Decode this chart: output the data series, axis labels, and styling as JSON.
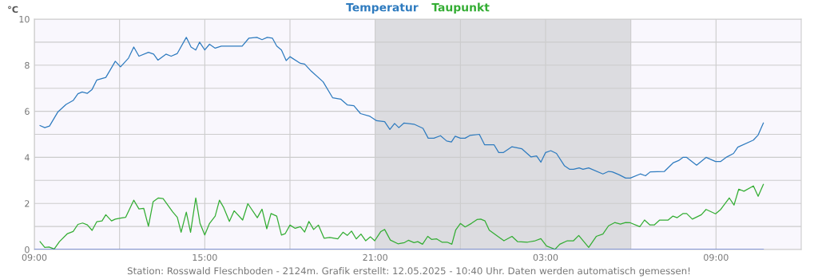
{
  "chart_data": {
    "type": "line",
    "ylabel": "°C",
    "annotations": [
      "Station: Rosswald Fleschboden - 2124m. Grafik erstellt: 12.05.2025 - 10:40 Uhr. Daten werden automatisch gemessen!"
    ],
    "xlim": [
      "2025-05-11T09:00",
      "2025-05-12T12:00"
    ],
    "xticks": [
      {
        "value": "2025-05-11T09:00",
        "label": "09:00"
      },
      {
        "value": "2025-05-11T12:00",
        "label": null
      },
      {
        "value": "2025-05-11T15:00",
        "label": "15:00"
      },
      {
        "value": "2025-05-11T18:00",
        "label": null
      },
      {
        "value": "2025-05-11T21:00",
        "label": "21:00"
      },
      {
        "value": "2025-05-12T00:00",
        "label": null
      },
      {
        "value": "2025-05-12T03:00",
        "label": "03:00"
      },
      {
        "value": "2025-05-12T06:00",
        "label": null
      },
      {
        "value": "2025-05-12T09:00",
        "label": "09:00"
      }
    ],
    "ylim": [
      0,
      10
    ],
    "yticks": [
      0,
      {
        "value": 1,
        "label": null
      },
      2,
      {
        "value": 3,
        "label": null
      },
      4,
      {
        "value": 5,
        "label": null
      },
      6,
      {
        "value": 7,
        "label": null
      },
      8,
      {
        "value": 9,
        "label": null
      },
      10
    ],
    "grid": true,
    "legend": "top",
    "marker": "none",
    "line_style": "solid",
    "bands": [
      {
        "axis": "x",
        "from": "2025-05-11T21:00",
        "to": "2025-05-12T06:00",
        "color": "#dcdce0"
      }
    ],
    "series": [
      {
        "name": "Temperatur",
        "color": "#2e7bbf",
        "x": [
          "2025-05-11T09:12",
          "2025-05-11T09:22",
          "2025-05-11T09:32",
          "2025-05-11T09:50",
          "2025-05-11T10:07",
          "2025-05-11T10:22",
          "2025-05-11T10:32",
          "2025-05-11T10:41",
          "2025-05-11T10:52",
          "2025-05-11T11:02",
          "2025-05-11T11:12",
          "2025-05-11T11:31",
          "2025-05-11T11:51",
          "2025-05-11T12:02",
          "2025-05-11T12:19",
          "2025-05-11T12:30",
          "2025-05-11T12:41",
          "2025-05-11T13:01",
          "2025-05-11T13:12",
          "2025-05-11T13:21",
          "2025-05-11T13:38",
          "2025-05-11T13:49",
          "2025-05-11T14:02",
          "2025-05-11T14:21",
          "2025-05-11T14:31",
          "2025-05-11T14:41",
          "2025-05-11T14:49",
          "2025-05-11T15:00",
          "2025-05-11T15:10",
          "2025-05-11T15:22",
          "2025-05-11T15:35",
          "2025-05-11T15:40",
          "2025-05-11T16:19",
          "2025-05-11T16:33",
          "2025-05-11T16:50",
          "2025-05-11T17:01",
          "2025-05-11T17:12",
          "2025-05-11T17:23",
          "2025-05-11T17:32",
          "2025-05-11T17:42",
          "2025-05-11T17:52",
          "2025-05-11T18:00",
          "2025-05-11T18:22",
          "2025-05-11T18:31",
          "2025-05-11T18:45",
          "2025-05-11T19:10",
          "2025-05-11T19:30",
          "2025-05-11T19:47",
          "2025-05-11T20:01",
          "2025-05-11T20:15",
          "2025-05-11T20:29",
          "2025-05-11T20:49",
          "2025-05-11T21:03",
          "2025-05-11T21:20",
          "2025-05-11T21:31",
          "2025-05-11T21:41",
          "2025-05-11T21:50",
          "2025-05-11T22:01",
          "2025-05-11T22:22",
          "2025-05-11T22:41",
          "2025-05-11T22:52",
          "2025-05-11T23:04",
          "2025-05-11T23:18",
          "2025-05-11T23:31",
          "2025-05-11T23:41",
          "2025-05-11T23:49",
          "2025-05-12T00:00",
          "2025-05-12T00:10",
          "2025-05-12T00:20",
          "2025-05-12T00:40",
          "2025-05-12T00:51",
          "2025-05-12T01:11",
          "2025-05-12T01:21",
          "2025-05-12T01:31",
          "2025-05-12T01:49",
          "2025-05-12T02:10",
          "2025-05-12T02:29",
          "2025-05-12T02:41",
          "2025-05-12T02:50",
          "2025-05-12T03:00",
          "2025-05-12T03:11",
          "2025-05-12T03:23",
          "2025-05-12T03:40",
          "2025-05-12T03:51",
          "2025-05-12T03:59",
          "2025-05-12T04:11",
          "2025-05-12T04:19",
          "2025-05-12T04:31",
          "2025-05-12T05:01",
          "2025-05-12T05:13",
          "2025-05-12T05:21",
          "2025-05-12T05:35",
          "2025-05-12T05:49",
          "2025-05-12T05:59",
          "2025-05-12T06:20",
          "2025-05-12T06:31",
          "2025-05-12T06:41",
          "2025-05-12T07:11",
          "2025-05-12T07:30",
          "2025-05-12T07:41",
          "2025-05-12T07:50",
          "2025-05-12T07:58",
          "2025-05-12T08:19",
          "2025-05-12T08:39",
          "2025-05-12T08:59",
          "2025-05-12T09:10",
          "2025-05-12T09:23",
          "2025-05-12T09:37",
          "2025-05-12T09:46",
          "2025-05-12T10:19",
          "2025-05-12T10:29",
          "2025-05-12T10:40"
        ],
        "values": [
          5.38,
          5.29,
          5.36,
          5.98,
          6.3,
          6.47,
          6.76,
          6.84,
          6.78,
          6.95,
          7.36,
          7.47,
          8.17,
          7.93,
          8.31,
          8.79,
          8.39,
          8.56,
          8.48,
          8.22,
          8.48,
          8.39,
          8.51,
          9.21,
          8.79,
          8.66,
          9.0,
          8.66,
          8.91,
          8.74,
          8.83,
          8.83,
          8.83,
          9.17,
          9.21,
          9.11,
          9.21,
          9.17,
          8.83,
          8.66,
          8.2,
          8.37,
          8.08,
          8.05,
          7.74,
          7.28,
          6.59,
          6.53,
          6.28,
          6.24,
          5.9,
          5.78,
          5.59,
          5.55,
          5.21,
          5.47,
          5.29,
          5.49,
          5.44,
          5.26,
          4.83,
          4.83,
          4.94,
          4.71,
          4.67,
          4.92,
          4.83,
          4.83,
          4.95,
          5.0,
          4.55,
          4.55,
          4.21,
          4.21,
          4.46,
          4.37,
          4.02,
          4.06,
          3.79,
          4.21,
          4.29,
          4.17,
          3.63,
          3.48,
          3.48,
          3.54,
          3.48,
          3.54,
          3.28,
          3.39,
          3.37,
          3.25,
          3.1,
          3.1,
          3.28,
          3.2,
          3.37,
          3.39,
          3.77,
          3.86,
          4.0,
          4.0,
          3.66,
          4.0,
          3.82,
          3.82,
          4.02,
          4.17,
          4.44,
          4.75,
          4.97,
          5.49
        ]
      },
      {
        "name": "Taupunkt",
        "color": "#33ad33",
        "x": [
          "2025-05-11T09:12",
          "2025-05-11T09:22",
          "2025-05-11T09:31",
          "2025-05-11T09:42",
          "2025-05-11T09:53",
          "2025-05-11T10:10",
          "2025-05-11T10:22",
          "2025-05-11T10:32",
          "2025-05-11T10:42",
          "2025-05-11T10:52",
          "2025-05-11T11:02",
          "2025-05-11T11:12",
          "2025-05-11T11:23",
          "2025-05-11T11:31",
          "2025-05-11T11:43",
          "2025-05-11T11:51",
          "2025-05-11T12:02",
          "2025-05-11T12:13",
          "2025-05-11T12:30",
          "2025-05-11T12:41",
          "2025-05-11T12:51",
          "2025-05-11T13:01",
          "2025-05-11T13:11",
          "2025-05-11T13:22",
          "2025-05-11T13:32",
          "2025-05-11T13:52",
          "2025-05-11T14:02",
          "2025-05-11T14:10",
          "2025-05-11T14:21",
          "2025-05-11T14:30",
          "2025-05-11T14:41",
          "2025-05-11T14:50",
          "2025-05-11T15:00",
          "2025-05-11T15:10",
          "2025-05-11T15:22",
          "2025-05-11T15:31",
          "2025-05-11T15:40",
          "2025-05-11T15:52",
          "2025-05-11T16:02",
          "2025-05-11T16:20",
          "2025-05-11T16:31",
          "2025-05-11T16:51",
          "2025-05-11T17:01",
          "2025-05-11T17:11",
          "2025-05-11T17:20",
          "2025-05-11T17:32",
          "2025-05-11T17:42",
          "2025-05-11T17:50",
          "2025-05-11T18:00",
          "2025-05-11T18:11",
          "2025-05-11T18:22",
          "2025-05-11T18:31",
          "2025-05-11T18:40",
          "2025-05-11T18:50",
          "2025-05-11T19:00",
          "2025-05-11T19:12",
          "2025-05-11T19:24",
          "2025-05-11T19:41",
          "2025-05-11T19:52",
          "2025-05-11T20:01",
          "2025-05-11T20:10",
          "2025-05-11T20:20",
          "2025-05-11T20:30",
          "2025-05-11T20:40",
          "2025-05-11T20:50",
          "2025-05-11T20:59",
          "2025-05-11T21:12",
          "2025-05-11T21:20",
          "2025-05-11T21:32",
          "2025-05-11T21:48",
          "2025-05-11T22:02",
          "2025-05-11T22:10",
          "2025-05-11T22:22",
          "2025-05-11T22:30",
          "2025-05-11T22:40",
          "2025-05-11T22:51",
          "2025-05-11T22:59",
          "2025-05-11T23:10",
          "2025-05-11T23:21",
          "2025-05-11T23:32",
          "2025-05-11T23:42",
          "2025-05-11T23:50",
          "2025-05-12T00:00",
          "2025-05-12T00:10",
          "2025-05-12T00:23",
          "2025-05-12T00:35",
          "2025-05-12T00:43",
          "2025-05-12T00:52",
          "2025-05-12T01:01",
          "2025-05-12T01:19",
          "2025-05-12T01:32",
          "2025-05-12T01:49",
          "2025-05-12T02:01",
          "2025-05-12T02:22",
          "2025-05-12T02:38",
          "2025-05-12T02:50",
          "2025-05-12T03:02",
          "2025-05-12T03:20",
          "2025-05-12T03:30",
          "2025-05-12T03:46",
          "2025-05-12T03:59",
          "2025-05-12T04:10",
          "2025-05-12T04:31",
          "2025-05-12T04:47",
          "2025-05-12T05:01",
          "2025-05-12T05:13",
          "2025-05-12T05:26",
          "2025-05-12T05:38",
          "2025-05-12T05:49",
          "2025-05-12T05:59",
          "2025-05-12T06:19",
          "2025-05-12T06:29",
          "2025-05-12T06:40",
          "2025-05-12T06:50",
          "2025-05-12T07:01",
          "2025-05-12T07:19",
          "2025-05-12T07:29",
          "2025-05-12T07:38",
          "2025-05-12T07:50",
          "2025-05-12T07:58",
          "2025-05-12T08:10",
          "2025-05-12T08:29",
          "2025-05-12T08:39",
          "2025-05-12T08:59",
          "2025-05-12T09:10",
          "2025-05-12T09:28",
          "2025-05-12T09:38",
          "2025-05-12T09:48",
          "2025-05-12T09:59",
          "2025-05-12T10:19",
          "2025-05-12T10:29",
          "2025-05-12T10:40"
        ],
        "values": [
          0.34,
          0.09,
          0.11,
          0.02,
          0.34,
          0.69,
          0.78,
          1.09,
          1.15,
          1.07,
          0.83,
          1.21,
          1.24,
          1.51,
          1.24,
          1.32,
          1.36,
          1.4,
          2.14,
          1.76,
          1.79,
          1.01,
          2.08,
          2.24,
          2.21,
          1.64,
          1.4,
          0.75,
          1.62,
          0.75,
          2.24,
          1.13,
          0.63,
          1.13,
          1.45,
          2.14,
          1.82,
          1.22,
          1.68,
          1.28,
          1.99,
          1.38,
          1.75,
          0.9,
          1.56,
          1.45,
          0.63,
          0.69,
          1.06,
          0.92,
          0.99,
          0.76,
          1.22,
          0.87,
          1.06,
          0.49,
          0.52,
          0.46,
          0.75,
          0.61,
          0.8,
          0.46,
          0.67,
          0.38,
          0.55,
          0.38,
          0.78,
          0.87,
          0.41,
          0.25,
          0.3,
          0.4,
          0.3,
          0.34,
          0.23,
          0.57,
          0.44,
          0.46,
          0.32,
          0.32,
          0.23,
          0.84,
          1.13,
          0.98,
          1.13,
          1.3,
          1.32,
          1.24,
          0.84,
          0.57,
          0.38,
          0.57,
          0.34,
          0.32,
          0.38,
          0.47,
          0.15,
          0.01,
          0.23,
          0.38,
          0.38,
          0.61,
          0.09,
          0.57,
          0.67,
          1.03,
          1.17,
          1.1,
          1.17,
          1.16,
          0.99,
          1.28,
          1.07,
          1.07,
          1.28,
          1.28,
          1.45,
          1.38,
          1.56,
          1.56,
          1.32,
          1.51,
          1.74,
          1.55,
          1.74,
          2.24,
          1.93,
          2.62,
          2.53,
          2.76,
          2.31,
          2.83
        ]
      },
      {
        "color": "#3b5fd9",
        "x": [
          "2025-05-11T09:00",
          "2025-05-12T10:40"
        ],
        "values": [
          0,
          0
        ]
      }
    ]
  }
}
